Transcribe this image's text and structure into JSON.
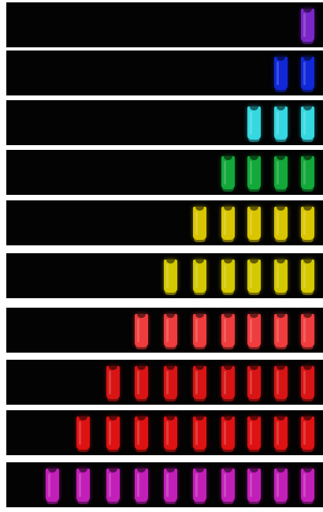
{
  "figure": {
    "description_free": true,
    "rows": [
      {
        "color": "#7a26c8",
        "count": 1
      },
      {
        "color": "#1028d8",
        "count": 2
      },
      {
        "color": "#35d8e0",
        "count": 3
      },
      {
        "color": "#13a83a",
        "count": 4
      },
      {
        "color": "#d9c600",
        "count": 5
      },
      {
        "color": "#d4c800",
        "count": 6
      },
      {
        "color": "#ef3c3c",
        "count": 7
      },
      {
        "color": "#d81414",
        "count": 8
      },
      {
        "color": "#de1212",
        "count": 9
      },
      {
        "color": "#c21fb8",
        "count": 10
      }
    ]
  }
}
